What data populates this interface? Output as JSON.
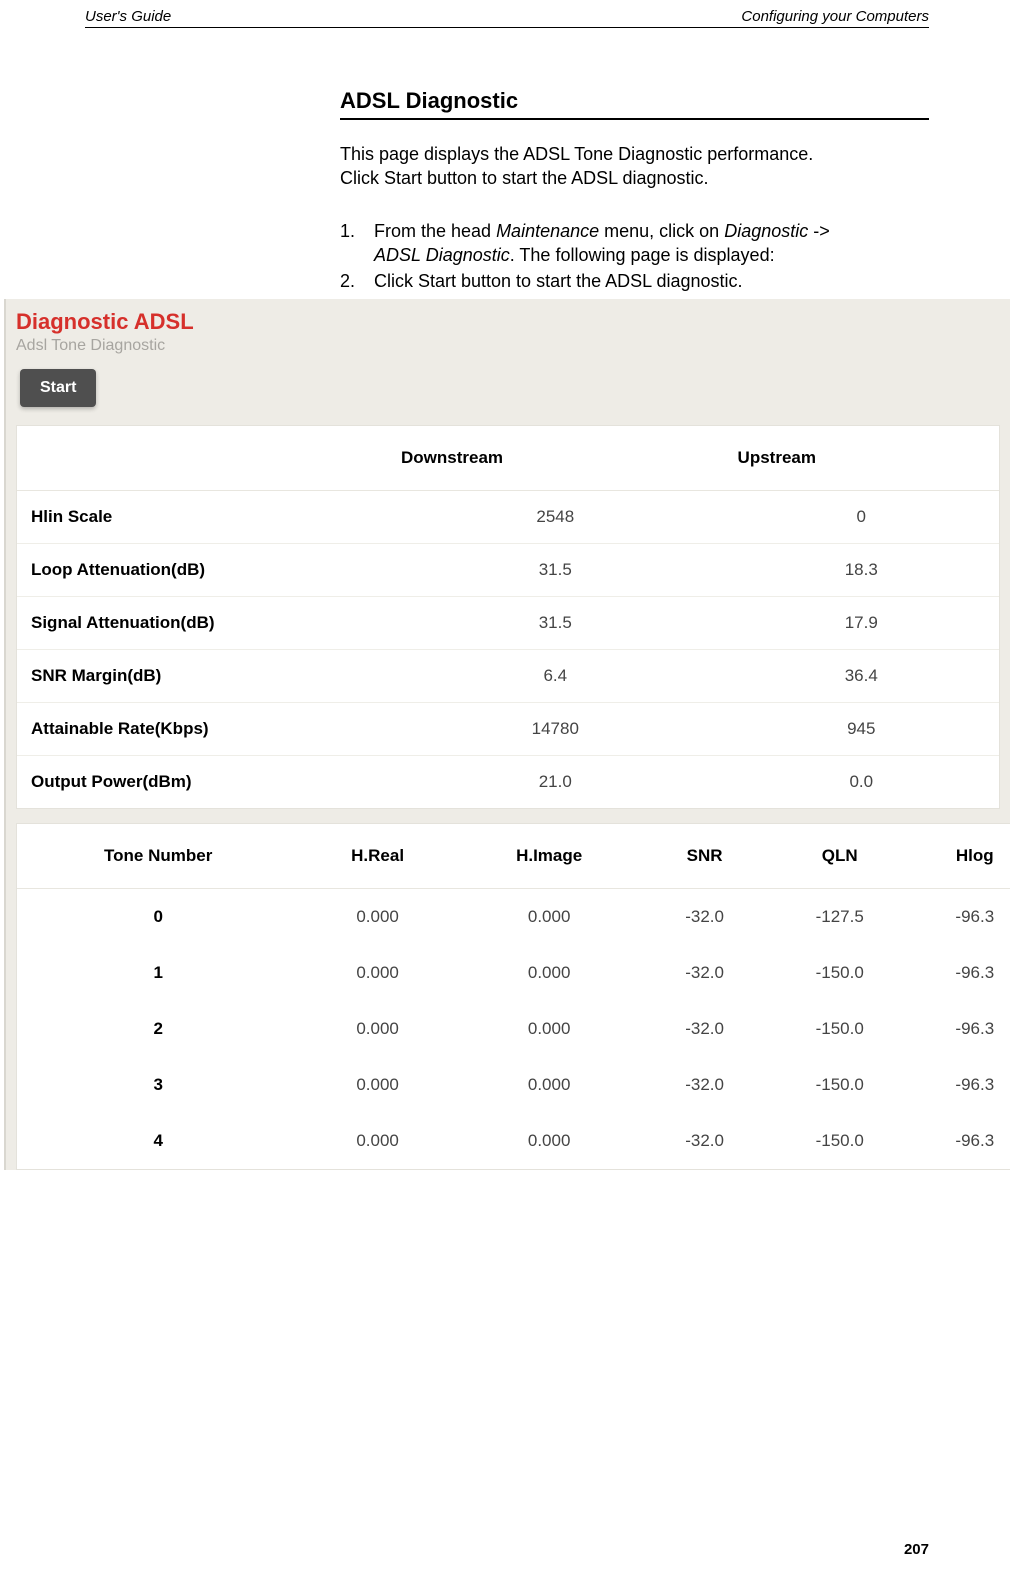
{
  "header": {
    "left": "User's Guide",
    "right": "Configuring your Computers"
  },
  "section": {
    "title": "ADSL Diagnostic",
    "intro_line1": "This page displays the ADSL Tone Diagnostic performance.",
    "intro_line2": "Click Start button to start the ADSL diagnostic.",
    "steps": [
      {
        "num": "1.",
        "pre": "From the head ",
        "it1": "Maintenance",
        "mid": " menu, click on ",
        "it2": "Diagnostic",
        "post1": "  -> ",
        "line2_it": "ADSL Diagnostic",
        "line2_post": ". The following page is displayed:"
      },
      {
        "num": "2.",
        "text": "Click Start button to start the ADSL diagnostic."
      }
    ]
  },
  "screenshot": {
    "title": "Diagnostic ADSL",
    "subtitle": "Adsl Tone Diagnostic",
    "start_label": "Start",
    "summary_table": {
      "headers": [
        "",
        "Downstream",
        "Upstream"
      ],
      "rows": [
        {
          "label": "Hlin Scale",
          "down": "2548",
          "up": "0"
        },
        {
          "label": "Loop Attenuation(dB)",
          "down": "31.5",
          "up": "18.3"
        },
        {
          "label": "Signal Attenuation(dB)",
          "down": "31.5",
          "up": "17.9"
        },
        {
          "label": "SNR Margin(dB)",
          "down": "6.4",
          "up": "36.4"
        },
        {
          "label": "Attainable Rate(Kbps)",
          "down": "14780",
          "up": "945"
        },
        {
          "label": "Output Power(dBm)",
          "down": "21.0",
          "up": "0.0"
        }
      ]
    },
    "tone_table": {
      "headers": [
        "Tone Number",
        "H.Real",
        "H.Image",
        "SNR",
        "QLN",
        "Hlog"
      ],
      "rows": [
        {
          "n": "0",
          "hreal": "0.000",
          "himage": "0.000",
          "snr": "-32.0",
          "qln": "-127.5",
          "hlog": "-96.3"
        },
        {
          "n": "1",
          "hreal": "0.000",
          "himage": "0.000",
          "snr": "-32.0",
          "qln": "-150.0",
          "hlog": "-96.3"
        },
        {
          "n": "2",
          "hreal": "0.000",
          "himage": "0.000",
          "snr": "-32.0",
          "qln": "-150.0",
          "hlog": "-96.3"
        },
        {
          "n": "3",
          "hreal": "0.000",
          "himage": "0.000",
          "snr": "-32.0",
          "qln": "-150.0",
          "hlog": "-96.3"
        },
        {
          "n": "4",
          "hreal": "0.000",
          "himage": "0.000",
          "snr": "-32.0",
          "qln": "-150.0",
          "hlog": "-96.3"
        }
      ]
    }
  },
  "page_number": "207",
  "colors": {
    "diag_title": "#d6302b",
    "diag_sub": "#a7a5a0",
    "panel_bg": "#eeece6",
    "button_bg": "#4f4f4f",
    "button_text": "#ffffff",
    "border": "#e4e2db",
    "row_border": "#efeee8",
    "value_text": "#444444"
  }
}
